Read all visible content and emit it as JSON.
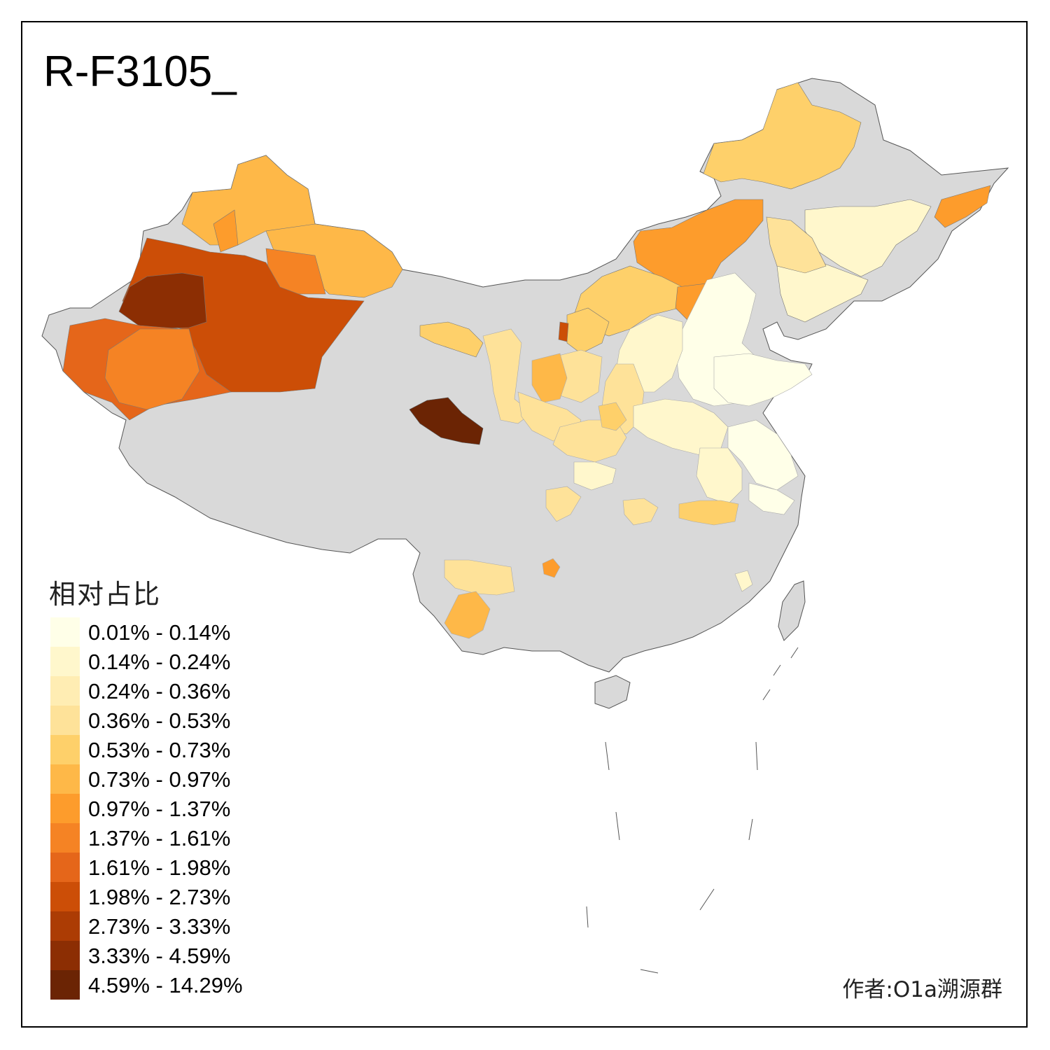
{
  "title": "R-F3105_",
  "legend": {
    "title": "相对占比",
    "items": [
      {
        "label": "0.01% - 0.14%",
        "color": "#ffffe8"
      },
      {
        "label": "0.14% - 0.24%",
        "color": "#fff7cc"
      },
      {
        "label": "0.24% - 0.36%",
        "color": "#ffedb3"
      },
      {
        "label": "0.36% - 0.53%",
        "color": "#fee299"
      },
      {
        "label": "0.53% - 0.73%",
        "color": "#fed06a"
      },
      {
        "label": "0.73% - 0.97%",
        "color": "#feb848"
      },
      {
        "label": "0.97% - 1.37%",
        "color": "#fd9c2c"
      },
      {
        "label": "1.37% - 1.61%",
        "color": "#f58324"
      },
      {
        "label": "1.61% - 1.98%",
        "color": "#e5661a"
      },
      {
        "label": "1.98% - 2.73%",
        "color": "#cc4e07"
      },
      {
        "label": "2.73% - 3.33%",
        "color": "#ac3c04"
      },
      {
        "label": "3.33% - 4.59%",
        "color": "#8c2e03"
      },
      {
        "label": "4.59% - 14.29%",
        "color": "#6b2404"
      }
    ]
  },
  "no_data_color": "#d9d9d9",
  "author": "作者:O1a溯源群"
}
